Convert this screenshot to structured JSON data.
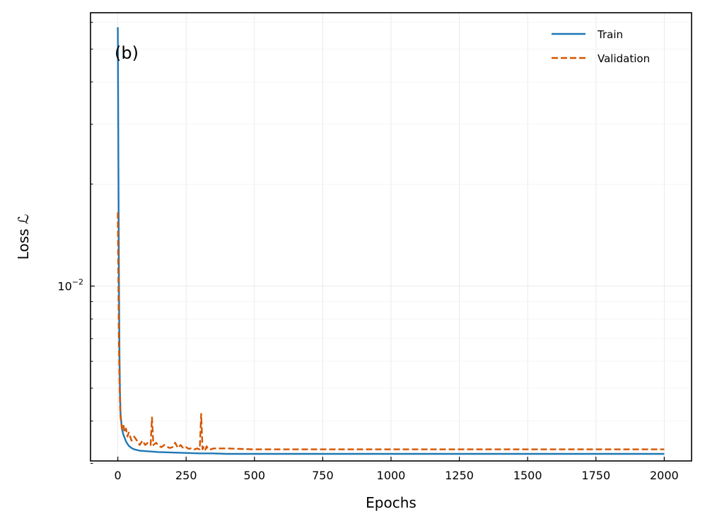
{
  "chart_data": {
    "type": "line",
    "panel_label": "(b)",
    "xlabel": "Epochs",
    "ylabel": "Loss ℒ",
    "y_scale": "log",
    "xlim": [
      -100,
      2100
    ],
    "ylim": [
      0.00305,
      0.064
    ],
    "x_ticks": [
      0,
      250,
      500,
      750,
      1000,
      1250,
      1500,
      1750,
      2000
    ],
    "x_tick_labels": [
      "0",
      "250",
      "500",
      "750",
      "1000",
      "1250",
      "1500",
      "1750",
      "2000"
    ],
    "y_major_ticks": [
      0.01
    ],
    "y_tick_base": "10",
    "y_tick_exp": "−2",
    "y_minor_ticks": [
      0.003,
      0.004,
      0.005,
      0.006,
      0.007,
      0.008,
      0.009,
      0.02,
      0.03,
      0.04,
      0.05,
      0.06
    ],
    "grid": true,
    "legend_position": "top-right",
    "series": [
      {
        "name": "Train",
        "color": "#1f77b4",
        "dash": "solid",
        "x": [
          0,
          2,
          4,
          6,
          8,
          10,
          15,
          20,
          30,
          40,
          50,
          60,
          80,
          100,
          150,
          200,
          250,
          300,
          350,
          400,
          500,
          600,
          800,
          1000,
          1200,
          1500,
          1750,
          2000
        ],
        "y": [
          0.058,
          0.024,
          0.0105,
          0.0062,
          0.0048,
          0.0042,
          0.0038,
          0.00365,
          0.00348,
          0.00338,
          0.00333,
          0.0033,
          0.00327,
          0.00326,
          0.00324,
          0.00323,
          0.00322,
          0.00321,
          0.00321,
          0.0032,
          0.0032,
          0.0032,
          0.0032,
          0.0032,
          0.0032,
          0.0032,
          0.0032,
          0.0032
        ]
      },
      {
        "name": "Validation",
        "color": "#d45500",
        "dash": "dashed",
        "x": [
          0,
          2,
          4,
          6,
          8,
          10,
          15,
          20,
          25,
          30,
          35,
          40,
          50,
          60,
          70,
          80,
          90,
          100,
          110,
          120,
          125,
          130,
          140,
          150,
          160,
          170,
          180,
          190,
          200,
          210,
          220,
          230,
          240,
          250,
          260,
          270,
          280,
          290,
          300,
          305,
          310,
          315,
          320,
          325,
          330,
          340,
          350,
          400,
          450,
          500,
          600,
          800,
          1000,
          1200,
          1500,
          1750,
          2000
        ],
        "y": [
          0.0165,
          0.0105,
          0.0068,
          0.0052,
          0.0045,
          0.0041,
          0.0038,
          0.0039,
          0.0037,
          0.0038,
          0.0036,
          0.0037,
          0.0035,
          0.0036,
          0.0035,
          0.0034,
          0.0035,
          0.0034,
          0.00345,
          0.0034,
          0.0041,
          0.0034,
          0.00345,
          0.00338,
          0.00335,
          0.0034,
          0.00336,
          0.00333,
          0.00335,
          0.00345,
          0.00333,
          0.0034,
          0.00332,
          0.00335,
          0.00331,
          0.00333,
          0.0033,
          0.00332,
          0.0033,
          0.0042,
          0.0033,
          0.00335,
          0.00329,
          0.00337,
          0.0033,
          0.0033,
          0.00332,
          0.00332,
          0.00331,
          0.0033,
          0.0033,
          0.0033,
          0.0033,
          0.0033,
          0.0033,
          0.0033,
          0.0033
        ]
      }
    ]
  }
}
